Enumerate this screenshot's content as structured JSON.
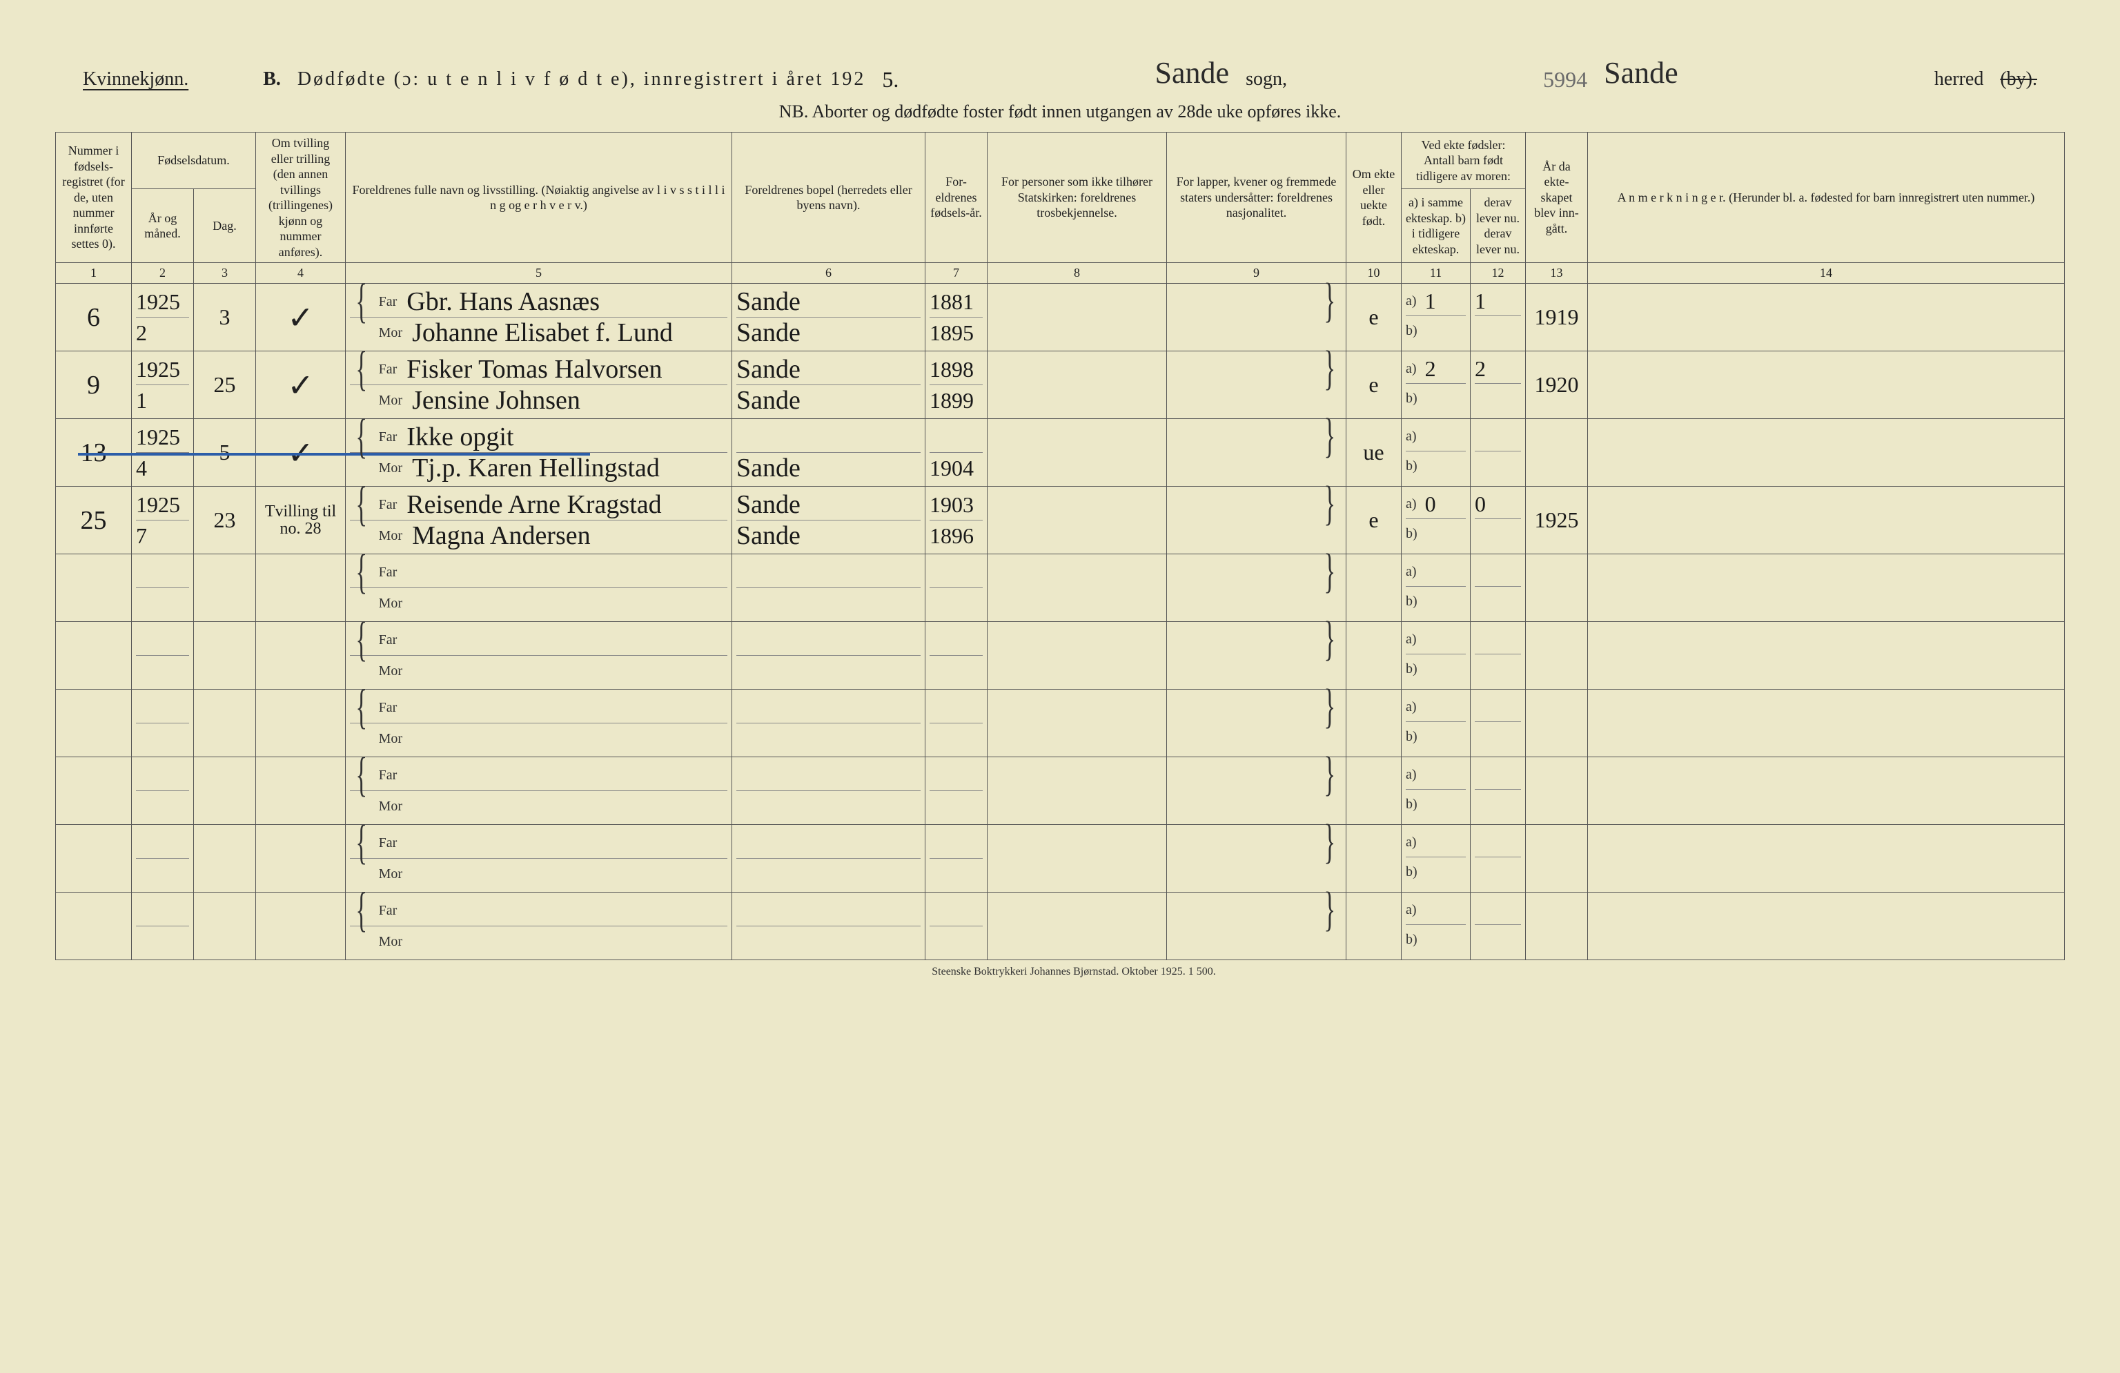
{
  "colors": {
    "paper": "#ece8c9",
    "ink": "#222222",
    "rule": "#555555",
    "subrule": "#888888",
    "blue_pencil": "#2b5da8",
    "handwriting": "#1a1a1a"
  },
  "header": {
    "gender_label": "Kvinnekjønn.",
    "section_letter": "B.",
    "title_main": "Dødfødte (ɔ: u t e n  l i v  f ø d t e),  innregistrert i året 192",
    "year_suffix_hand": "5.",
    "sogn_value_hand": "Sande",
    "sogn_label": "sogn,",
    "herred_no_hand": "5994",
    "herred_value_hand": "Sande",
    "herred_label": "herred",
    "herred_struck": "(by).",
    "nb_line": "NB.  Aborter og dødfødte foster født innen utgangen av 28de uke opføres ikke."
  },
  "columns": {
    "c1": "Nummer i fødsels-registret (for de, uten nummer innførte settes 0).",
    "c2_group": "Fødselsdatum.",
    "c2": "År og måned.",
    "c3": "Dag.",
    "c4": "Om tvilling eller trilling (den annen tvillings (trillingenes) kjønn og nummer anføres).",
    "c5": "Foreldrenes fulle navn og livsstilling. (Nøiaktig angivelse av l i v s s t i l l i n g og e r h v e r v.)",
    "c6": "Foreldrenes bopel (herredets eller byens navn).",
    "c7": "For-eldrenes fødsels-år.",
    "c8": "For personer som ikke tilhører Statskirken: foreldrenes trosbekjennelse.",
    "c9": "For lapper, kvener og fremmede staters undersåtter: foreldrenes nasjonalitet.",
    "c10": "Om ekte eller uekte født.",
    "c11_group": "Ved ekte fødsler: Antall barn født tidligere av moren:",
    "c11": "a) i samme ekteskap. b) i tidligere ekteskap.",
    "c12": "derav lever nu. derav lever nu.",
    "c13": "År da ekte-skapet blev inn-gått.",
    "c14": "A n m e r k n i n g e r. (Herunder bl. a. fødested for barn innregistrert uten nummer.)"
  },
  "colnums": [
    "1",
    "2",
    "3",
    "4",
    "5",
    "6",
    "7",
    "8",
    "9",
    "10",
    "11",
    "12",
    "13",
    "14"
  ],
  "labels": {
    "far": "Far",
    "mor": "Mor",
    "a": "a)",
    "b": "b)"
  },
  "rows": [
    {
      "no": "6",
      "year_month_top": "1925",
      "year_month_bot": "2",
      "day": "3",
      "twin": "✓",
      "far_name": "Gbr. Hans Aasnæs",
      "mor_name": "Johanne Elisabet f. Lund",
      "far_place": "Sande",
      "mor_place": "Sande",
      "far_year": "1881",
      "mor_year": "1895",
      "col8": "",
      "col9": "",
      "ekte": "e",
      "a_val": "1",
      "a_lever": "1",
      "b_val": "",
      "year_married": "1919",
      "remark": "",
      "struck": false
    },
    {
      "no": "9",
      "year_month_top": "1925",
      "year_month_bot": "1",
      "day": "25",
      "twin": "✓",
      "far_name": "Fisker Tomas Halvorsen",
      "mor_name": "Jensine Johnsen",
      "far_place": "Sande",
      "mor_place": "Sande",
      "far_year": "1898",
      "mor_year": "1899",
      "col8": "",
      "col9": "",
      "ekte": "e",
      "a_val": "2",
      "a_lever": "2",
      "b_val": "",
      "year_married": "1920",
      "remark": "",
      "struck": false
    },
    {
      "no": "13",
      "year_month_top": "1925",
      "year_month_bot": "4",
      "day": "5",
      "twin": "✓",
      "far_name": "Ikke opgit",
      "mor_name": "Tj.p. Karen Hellingstad",
      "far_place": "",
      "mor_place": "Sande",
      "far_year": "",
      "mor_year": "1904",
      "col8": "",
      "col9": "",
      "ekte": "ue",
      "a_val": "",
      "a_lever": "",
      "b_val": "",
      "year_married": "",
      "remark": "",
      "struck": true
    },
    {
      "no": "25",
      "year_month_top": "1925",
      "year_month_bot": "7",
      "day": "23",
      "twin": "Tvilling til no. 28",
      "far_name": "Reisende Arne Kragstad",
      "mor_name": "Magna Andersen",
      "far_place": "Sande",
      "mor_place": "Sande",
      "far_year": "1903",
      "mor_year": "1896",
      "col8": "",
      "col9": "",
      "ekte": "e",
      "a_val": "0",
      "a_lever": "0",
      "b_val": "",
      "year_married": "1925",
      "remark": "",
      "struck": false
    }
  ],
  "empty_row_count": 6,
  "footer": "Steenske Boktrykkeri Johannes Bjørnstad.   Oktober 1925.   1 500."
}
